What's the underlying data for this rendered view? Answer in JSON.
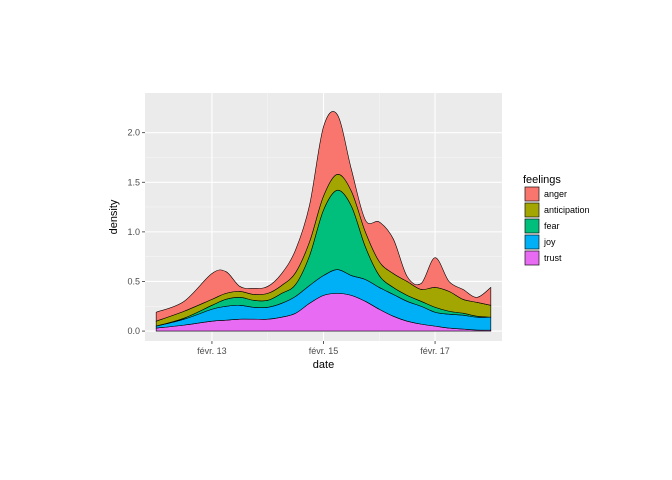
{
  "chart_data": {
    "type": "area",
    "stacked": true,
    "xlabel": "date",
    "ylabel": "density",
    "x_ticks": [
      {
        "day": 13,
        "label": "févr. 13"
      },
      {
        "day": 15,
        "label": "févr. 15"
      },
      {
        "day": 17,
        "label": "févr. 17"
      }
    ],
    "y_ticks": [
      {
        "value": 0.0,
        "label": "0.0"
      },
      {
        "value": 0.5,
        "label": "0.5"
      },
      {
        "value": 1.0,
        "label": "1.0"
      },
      {
        "value": 1.5,
        "label": "1.5"
      },
      {
        "value": 2.0,
        "label": "2.0"
      }
    ],
    "xlim": [
      11.8,
      18.2
    ],
    "ylim": [
      -0.1,
      2.4
    ],
    "grid": true,
    "legend": {
      "title": "feelings",
      "position": "right"
    },
    "x": [
      12.0,
      12.5,
      13.0,
      13.25,
      13.5,
      13.75,
      14.0,
      14.25,
      14.5,
      14.75,
      15.0,
      15.25,
      15.5,
      15.75,
      16.0,
      16.25,
      16.5,
      16.75,
      17.0,
      17.25,
      17.5,
      17.75,
      18.0
    ],
    "series": [
      {
        "name": "trust",
        "color": "#E76BF3",
        "values": [
          0.03,
          0.06,
          0.1,
          0.11,
          0.12,
          0.12,
          0.12,
          0.14,
          0.18,
          0.28,
          0.36,
          0.38,
          0.36,
          0.3,
          0.22,
          0.15,
          0.1,
          0.07,
          0.05,
          0.03,
          0.02,
          0.01,
          0.01
        ]
      },
      {
        "name": "joy",
        "color": "#00B0F6",
        "values": [
          0.02,
          0.06,
          0.12,
          0.14,
          0.14,
          0.12,
          0.12,
          0.14,
          0.17,
          0.18,
          0.2,
          0.24,
          0.2,
          0.22,
          0.22,
          0.22,
          0.2,
          0.18,
          0.14,
          0.14,
          0.14,
          0.13,
          0.13
        ]
      },
      {
        "name": "fear",
        "color": "#00BF7D",
        "values": [
          0.0,
          0.01,
          0.04,
          0.07,
          0.08,
          0.07,
          0.07,
          0.1,
          0.12,
          0.3,
          0.66,
          0.8,
          0.7,
          0.33,
          0.12,
          0.07,
          0.06,
          0.05,
          0.05,
          0.03,
          0.02,
          0.01,
          0.0
        ]
      },
      {
        "name": "anticipation",
        "color": "#A3A500",
        "values": [
          0.05,
          0.07,
          0.06,
          0.06,
          0.06,
          0.06,
          0.07,
          0.08,
          0.12,
          0.14,
          0.14,
          0.16,
          0.15,
          0.15,
          0.14,
          0.14,
          0.14,
          0.12,
          0.2,
          0.2,
          0.14,
          0.14,
          0.12
        ]
      },
      {
        "name": "anger",
        "color": "#F8766D",
        "values": [
          0.09,
          0.1,
          0.26,
          0.22,
          0.05,
          0.06,
          0.07,
          0.12,
          0.23,
          0.37,
          0.7,
          0.6,
          0.22,
          0.12,
          0.4,
          0.35,
          0.05,
          0.06,
          0.3,
          0.1,
          0.1,
          0.05,
          0.18
        ]
      }
    ]
  }
}
